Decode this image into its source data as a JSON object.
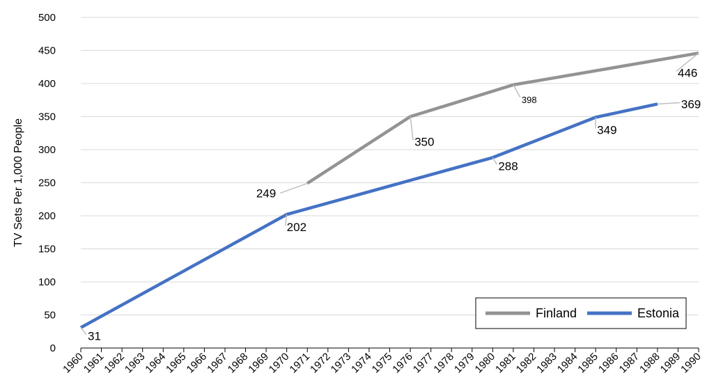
{
  "chart_data": {
    "type": "line",
    "title": "",
    "xlabel": "",
    "ylabel": "TV Sets Per 1,000 People",
    "ylim": [
      0,
      500
    ],
    "yticks": [
      "0",
      "50",
      "100",
      "150",
      "200",
      "250",
      "300",
      "350",
      "400",
      "450",
      "500"
    ],
    "xticks": [
      "1960",
      "1961",
      "1962",
      "1963",
      "1964",
      "1965",
      "1966",
      "1967",
      "1968",
      "1969",
      "1970",
      "1971",
      "1972",
      "1973",
      "1974",
      "1975",
      "1976",
      "1977",
      "1978",
      "1979",
      "1980",
      "1981",
      "1982",
      "1983",
      "1984",
      "1985",
      "1986",
      "1987",
      "1988",
      "1989",
      "1990"
    ],
    "grid": true,
    "legend_position": "bottom-right",
    "series": [
      {
        "name": "Finland",
        "color": "#939393",
        "points": [
          [
            1971,
            249
          ],
          [
            1976,
            350
          ],
          [
            1981,
            398
          ],
          [
            1990,
            446
          ]
        ],
        "labels": [
          "249",
          "350",
          "398",
          "446"
        ]
      },
      {
        "name": "Estonia",
        "color": "#4472C4",
        "points": [
          [
            1960,
            31
          ],
          [
            1970,
            202
          ],
          [
            1980,
            288
          ],
          [
            1985,
            349
          ],
          [
            1988,
            369
          ]
        ],
        "labels": [
          "31",
          "202",
          "288",
          "349",
          "369"
        ]
      }
    ]
  }
}
